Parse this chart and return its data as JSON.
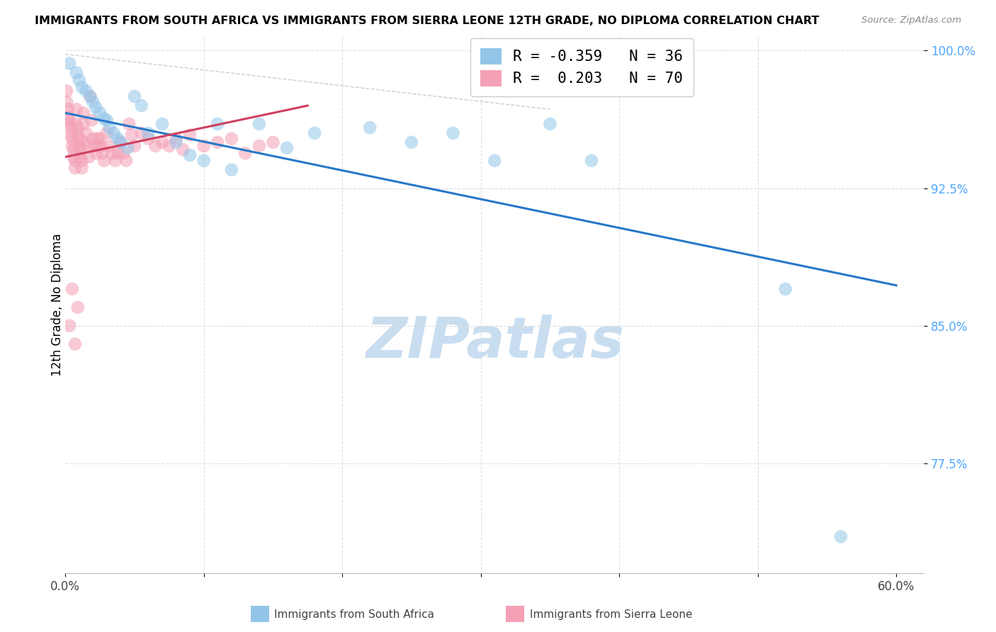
{
  "title": "IMMIGRANTS FROM SOUTH AFRICA VS IMMIGRANTS FROM SIERRA LEONE 12TH GRADE, NO DIPLOMA CORRELATION CHART",
  "source": "Source: ZipAtlas.com",
  "ylabel": "12th Grade, No Diploma",
  "xlim": [
    0.0,
    0.62
  ],
  "ylim": [
    0.715,
    1.008
  ],
  "xtick_positions": [
    0.0,
    0.1,
    0.2,
    0.3,
    0.4,
    0.5,
    0.6
  ],
  "xticklabels": [
    "0.0%",
    "",
    "",
    "",
    "",
    "",
    "60.0%"
  ],
  "ytick_positions": [
    0.775,
    0.85,
    0.925,
    1.0
  ],
  "yticklabels": [
    "77.5%",
    "85.0%",
    "92.5%",
    "100.0%"
  ],
  "color_blue": "#93c5e8",
  "color_pink": "#f4a0b5",
  "color_blue_line": "#2878c8",
  "color_pink_line": "#d04060",
  "color_ref_line": "#cccccc",
  "color_grid": "#dddddd",
  "color_ytick_label": "#4da6ff",
  "watermark_color": "#c8ddf0",
  "legend_label1": "R = -0.359   N = 36",
  "legend_label2": "R =  0.203   N = 70",
  "blue_line_x": [
    0.0,
    0.6
  ],
  "blue_line_y": [
    0.966,
    0.872
  ],
  "pink_line_x": [
    0.0,
    0.175
  ],
  "pink_line_y": [
    0.942,
    0.97
  ],
  "ref_line_x": [
    0.0,
    0.35
  ],
  "ref_line_y": [
    0.998,
    0.968
  ],
  "sa_x": [
    0.003,
    0.008,
    0.01,
    0.012,
    0.015,
    0.018,
    0.02,
    0.022,
    0.025,
    0.028,
    0.03,
    0.032,
    0.035,
    0.038,
    0.04,
    0.045,
    0.05,
    0.055,
    0.06,
    0.07,
    0.08,
    0.09,
    0.1,
    0.11,
    0.12,
    0.14,
    0.16,
    0.18,
    0.22,
    0.25,
    0.28,
    0.31,
    0.35,
    0.38,
    0.52,
    0.56
  ],
  "sa_y": [
    0.993,
    0.988,
    0.984,
    0.98,
    0.978,
    0.975,
    0.972,
    0.969,
    0.966,
    0.963,
    0.962,
    0.958,
    0.955,
    0.952,
    0.95,
    0.947,
    0.975,
    0.97,
    0.955,
    0.96,
    0.95,
    0.943,
    0.94,
    0.96,
    0.935,
    0.96,
    0.947,
    0.955,
    0.958,
    0.95,
    0.955,
    0.94,
    0.96,
    0.94,
    0.87,
    0.735
  ],
  "sl_x": [
    0.001,
    0.001,
    0.002,
    0.002,
    0.003,
    0.003,
    0.004,
    0.004,
    0.005,
    0.005,
    0.006,
    0.006,
    0.007,
    0.007,
    0.008,
    0.008,
    0.009,
    0.009,
    0.01,
    0.01,
    0.011,
    0.011,
    0.012,
    0.012,
    0.013,
    0.013,
    0.014,
    0.015,
    0.016,
    0.017,
    0.018,
    0.019,
    0.02,
    0.021,
    0.022,
    0.023,
    0.024,
    0.025,
    0.026,
    0.027,
    0.028,
    0.03,
    0.032,
    0.034,
    0.036,
    0.038,
    0.04,
    0.042,
    0.044,
    0.046,
    0.048,
    0.05,
    0.055,
    0.06,
    0.065,
    0.07,
    0.075,
    0.08,
    0.085,
    0.09,
    0.1,
    0.11,
    0.12,
    0.13,
    0.14,
    0.15,
    0.003,
    0.005,
    0.007,
    0.009
  ],
  "sl_y": [
    0.978,
    0.972,
    0.968,
    0.964,
    0.962,
    0.96,
    0.958,
    0.954,
    0.952,
    0.948,
    0.946,
    0.942,
    0.94,
    0.936,
    0.968,
    0.96,
    0.958,
    0.954,
    0.952,
    0.948,
    0.946,
    0.942,
    0.94,
    0.936,
    0.966,
    0.96,
    0.95,
    0.955,
    0.948,
    0.942,
    0.975,
    0.962,
    0.952,
    0.948,
    0.944,
    0.952,
    0.948,
    0.952,
    0.948,
    0.944,
    0.94,
    0.955,
    0.948,
    0.944,
    0.94,
    0.944,
    0.95,
    0.944,
    0.94,
    0.96,
    0.954,
    0.948,
    0.955,
    0.952,
    0.948,
    0.95,
    0.948,
    0.952,
    0.946,
    0.954,
    0.948,
    0.95,
    0.952,
    0.944,
    0.948,
    0.95,
    0.85,
    0.87,
    0.84,
    0.86
  ]
}
